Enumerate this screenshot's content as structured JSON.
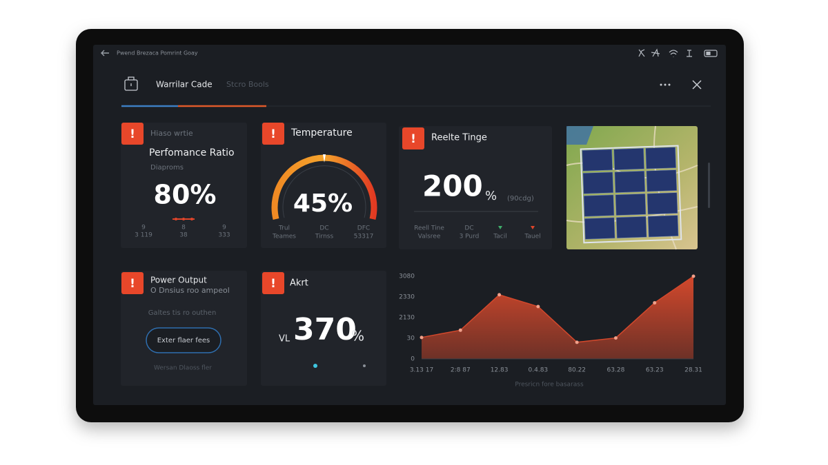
{
  "status_bar": {
    "title": "Pwend Brezaca Pomrint Goay"
  },
  "tabs": [
    "Warrilar Cade",
    "Stcro Bools"
  ],
  "alert_symbol": "!",
  "cards": [
    {
      "kicker": "Hiaso wrtie",
      "title": "Perfomance Ratio",
      "subtitle": "Diaproms",
      "value": "80%",
      "stats": [
        [
          "9",
          "3 119"
        ],
        [
          "8",
          "38"
        ],
        [
          "9",
          "333"
        ]
      ]
    },
    {
      "title": "Temperature",
      "value": "45%",
      "stats": [
        [
          "Trul",
          "Teames"
        ],
        [
          "DC",
          "Tirnss"
        ],
        [
          "DFC",
          "53317"
        ]
      ]
    },
    {
      "title": "Reelte Tinge",
      "value": "200",
      "unit": "%",
      "note": "(90cdg)",
      "stats": [
        [
          "Reell Tine",
          "Valsree"
        ],
        [
          "DC",
          "3 Purd"
        ],
        [
          "Tacil"
        ],
        [
          "Tauel"
        ]
      ]
    },
    {
      "title": "Power Output",
      "subtitle": "O Dnsius roo ampeol",
      "body": "Galtes tis ro outhen",
      "button": "Exter flaer fees",
      "footer": "Wersan Dlaoss fler"
    },
    {
      "title": "Akrt",
      "prefix": "VL",
      "value": "370",
      "unit": "%"
    }
  ],
  "chart_data": {
    "type": "area",
    "categories": [
      "3.13 17",
      "2:8 87",
      "12.83",
      "0.4.83",
      "80.22",
      "63.28",
      "63.23",
      "28.31"
    ],
    "values": [
      800,
      1070,
      2390,
      1950,
      620,
      780,
      2090,
      3080
    ],
    "color": "#d2482c",
    "ylim": [
      0,
      3080
    ],
    "yticks": [
      0,
      30,
      2130,
      2330,
      3080
    ],
    "caption": "Presricn fore basarass"
  }
}
